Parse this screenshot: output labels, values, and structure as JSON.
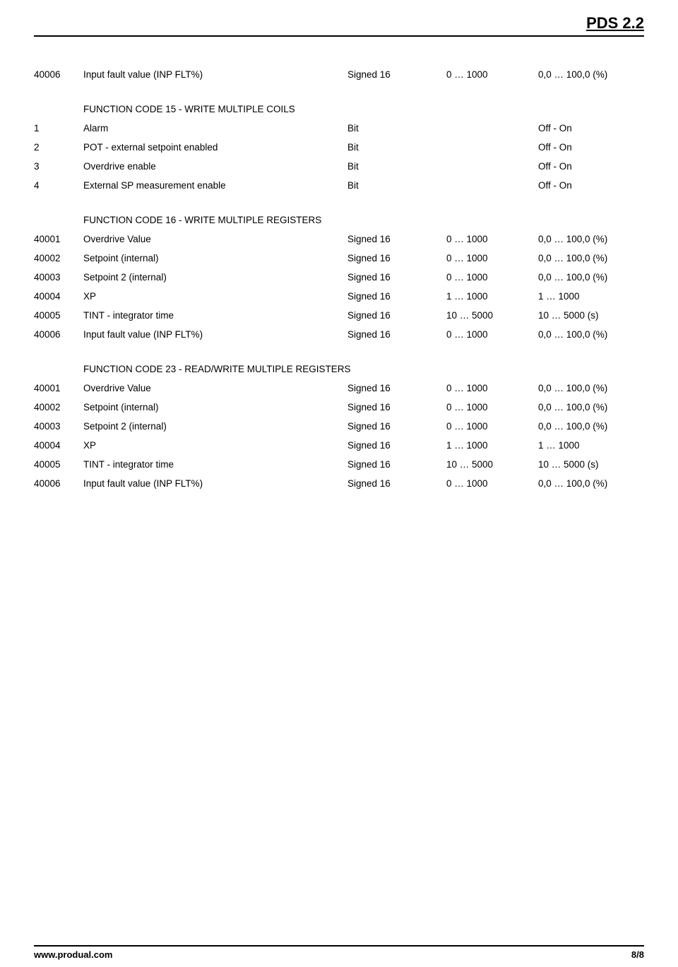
{
  "header": {
    "title": "PDS 2.2"
  },
  "intro_row": {
    "num": "40006",
    "desc": "Input fault value (INP FLT%)",
    "type": "Signed 16",
    "range": "0 … 1000",
    "unit": "0,0 … 100,0 (%)"
  },
  "sections": [
    {
      "title": "FUNCTION CODE 15 - WRITE MULTIPLE COILS",
      "rows": [
        {
          "num": "1",
          "desc": "Alarm",
          "type": "Bit",
          "range": "",
          "unit": "Off - On"
        },
        {
          "num": "2",
          "desc": "POT - external setpoint enabled",
          "type": "Bit",
          "range": "",
          "unit": "Off - On"
        },
        {
          "num": "3",
          "desc": "Overdrive enable",
          "type": "Bit",
          "range": "",
          "unit": "Off - On"
        },
        {
          "num": "4",
          "desc": "External SP measurement enable",
          "type": "Bit",
          "range": "",
          "unit": "Off - On"
        }
      ]
    },
    {
      "title": "FUNCTION CODE 16 - WRITE MULTIPLE REGISTERS",
      "rows": [
        {
          "num": "40001",
          "desc": "Overdrive Value",
          "type": "Signed 16",
          "range": "0 … 1000",
          "unit": "0,0 … 100,0 (%)"
        },
        {
          "num": "40002",
          "desc": "Setpoint (internal)",
          "type": "Signed 16",
          "range": "0 … 1000",
          "unit": "0,0 … 100,0 (%)"
        },
        {
          "num": "40003",
          "desc": "Setpoint 2 (internal)",
          "type": "Signed 16",
          "range": "0 … 1000",
          "unit": "0,0 … 100,0 (%)"
        },
        {
          "num": "40004",
          "desc": "XP",
          "type": "Signed 16",
          "range": "1 … 1000",
          "unit": "1 … 1000"
        },
        {
          "num": "40005",
          "desc": "TINT - integrator time",
          "type": "Signed 16",
          "range": "10 … 5000",
          "unit": "10 … 5000 (s)"
        },
        {
          "num": "40006",
          "desc": "Input fault value (INP FLT%)",
          "type": "Signed 16",
          "range": "0 … 1000",
          "unit": "0,0 … 100,0 (%)"
        }
      ]
    },
    {
      "title": "FUNCTION CODE 23 - READ/WRITE MULTIPLE REGISTERS",
      "rows": [
        {
          "num": "40001",
          "desc": "Overdrive Value",
          "type": "Signed 16",
          "range": "0 … 1000",
          "unit": "0,0 … 100,0 (%)"
        },
        {
          "num": "40002",
          "desc": "Setpoint (internal)",
          "type": "Signed 16",
          "range": "0 … 1000",
          "unit": "0,0 … 100,0 (%)"
        },
        {
          "num": "40003",
          "desc": "Setpoint 2 (internal)",
          "type": "Signed 16",
          "range": "0 … 1000",
          "unit": "0,0 … 100,0 (%)"
        },
        {
          "num": "40004",
          "desc": "XP",
          "type": "Signed 16",
          "range": "1 … 1000",
          "unit": "1 … 1000"
        },
        {
          "num": "40005",
          "desc": "TINT - integrator time",
          "type": "Signed 16",
          "range": "10 … 5000",
          "unit": "10 … 5000 (s)"
        },
        {
          "num": "40006",
          "desc": "Input fault value (INP FLT%)",
          "type": "Signed 16",
          "range": "0 … 1000",
          "unit": "0,0 … 100,0 (%)"
        }
      ]
    }
  ],
  "footer": {
    "url": "www.produal.com",
    "page": "8/8"
  }
}
